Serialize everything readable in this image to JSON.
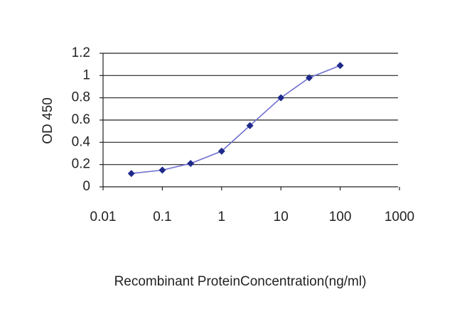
{
  "chart_data": {
    "type": "line",
    "x_label": "Recombinant ProteinConcentration(ng/ml)",
    "y_label": "OD 450",
    "x": [
      0.03,
      0.1,
      0.3,
      1,
      3,
      10,
      30,
      100
    ],
    "values": [
      0.12,
      0.15,
      0.21,
      0.32,
      0.55,
      0.8,
      0.98,
      1.09
    ],
    "line_color": "#6f6fd0",
    "marker_color": "#1e2a8a",
    "xscale": "log",
    "xlim": [
      0.01,
      1000
    ],
    "xticks": [
      0.01,
      0.1,
      1,
      10,
      100,
      1000
    ],
    "ylim": [
      0,
      1.2
    ],
    "yticks": [
      0,
      0.2,
      0.4,
      0.6,
      0.8,
      1,
      1.2
    ],
    "grid": true
  }
}
